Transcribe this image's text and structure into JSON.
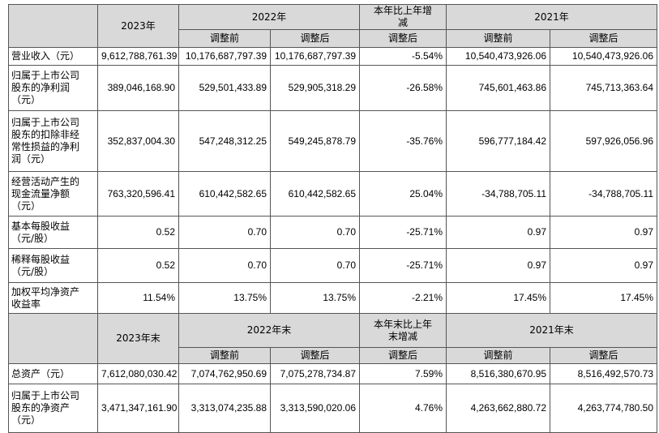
{
  "sections": [
    {
      "header": {
        "current": "2023年",
        "previous": "2022年",
        "change": "本年比上年增减",
        "earlier": "2021年",
        "sub": [
          "调整前",
          "调整后",
          "调整后",
          "调整前",
          "调整后"
        ]
      },
      "rows": [
        {
          "label": "营业收入（元）",
          "values": [
            "9,612,788,761.39",
            "10,176,687,797.39",
            "10,176,687,797.39",
            "-5.54%",
            "10,540,473,926.06",
            "10,540,473,926.06"
          ]
        },
        {
          "label": "归属于上市公司股东的净利润（元）",
          "values": [
            "389,046,168.90",
            "529,501,433.89",
            "529,905,318.29",
            "-26.58%",
            "745,601,463.86",
            "745,713,363.64"
          ]
        },
        {
          "label": "归属于上市公司股东的扣除非经常性损益的净利润（元）",
          "values": [
            "352,837,004.30",
            "547,248,312.25",
            "549,245,878.79",
            "-35.76%",
            "596,777,184.42",
            "597,926,056.96"
          ]
        },
        {
          "label": "经营活动产生的现金流量净额（元）",
          "values": [
            "763,320,596.41",
            "610,442,582.65",
            "610,442,582.65",
            "25.04%",
            "-34,788,705.11",
            "-34,788,705.11"
          ]
        },
        {
          "label": "基本每股收益（元/股）",
          "values": [
            "0.52",
            "0.70",
            "0.70",
            "-25.71%",
            "0.97",
            "0.97"
          ]
        },
        {
          "label": "稀释每股收益（元/股）",
          "values": [
            "0.52",
            "0.70",
            "0.70",
            "-25.71%",
            "0.97",
            "0.97"
          ]
        },
        {
          "label": "加权平均净资产收益率",
          "values": [
            "11.54%",
            "13.75%",
            "13.75%",
            "-2.21%",
            "17.45%",
            "17.45%"
          ]
        }
      ]
    },
    {
      "header": {
        "current": "2023年末",
        "previous": "2022年末",
        "change": "本年末比上年末增减",
        "earlier": "2021年末",
        "sub": [
          "调整前",
          "调整后",
          "调整后",
          "调整前",
          "调整后"
        ]
      },
      "rows": [
        {
          "label": "总资产（元）",
          "values": [
            "7,612,080,030.42",
            "7,074,762,950.69",
            "7,075,278,734.87",
            "7.59%",
            "8,516,380,670.95",
            "8,516,492,570.73"
          ]
        },
        {
          "label": "归属于上市公司股东的净资产（元）",
          "values": [
            "3,471,347,161.90",
            "3,313,074,235.88",
            "3,313,590,020.06",
            "4.76%",
            "4,263,662,880.72",
            "4,263,774,780.50"
          ]
        }
      ]
    }
  ]
}
